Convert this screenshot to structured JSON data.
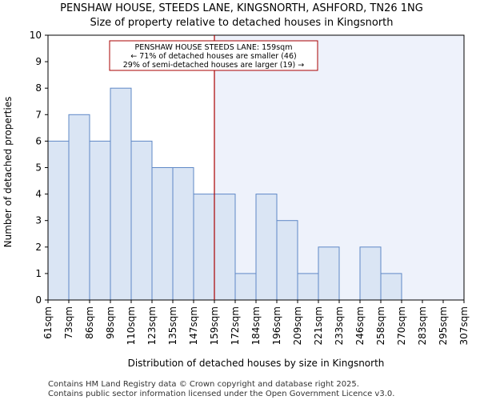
{
  "chart_data": {
    "type": "bar",
    "title": "PENSHAW HOUSE, STEEDS LANE, KINGSNORTH, ASHFORD, TN26 1NG",
    "subtitle": "Size of property relative to detached houses in Kingsnorth",
    "xlabel": "Distribution of detached houses by size in Kingsnorth",
    "ylabel": "Number of detached properties",
    "ylim": [
      0,
      10
    ],
    "yticks": [
      0,
      1,
      2,
      3,
      4,
      5,
      6,
      7,
      8,
      9,
      10
    ],
    "bin_edges": [
      "61sqm",
      "73sqm",
      "86sqm",
      "98sqm",
      "110sqm",
      "123sqm",
      "135sqm",
      "147sqm",
      "159sqm",
      "172sqm",
      "184sqm",
      "196sqm",
      "209sqm",
      "221sqm",
      "233sqm",
      "246sqm",
      "258sqm",
      "270sqm",
      "283sqm",
      "295sqm",
      "307sqm"
    ],
    "values": [
      6,
      7,
      6,
      8,
      6,
      5,
      5,
      4,
      4,
      1,
      4,
      3,
      1,
      2,
      0,
      2,
      1,
      0,
      0,
      0
    ],
    "marker": {
      "value_label": "159sqm",
      "bin_index": 8,
      "line_color": "#aa0000"
    },
    "annotation": {
      "line1": "PENSHAW HOUSE STEEDS LANE: 159sqm",
      "line2": "← 71% of detached houses are smaller (46)",
      "line3": "29% of semi-detached houses are larger (19) →"
    },
    "colors": {
      "bar_fill": "#dae5f4",
      "bar_stroke": "#5f88c6",
      "highlight_bg": "#eef2fb",
      "grid": "#d0d0d0"
    },
    "grid": false
  },
  "footer": {
    "line1": "Contains HM Land Registry data © Crown copyright and database right 2025.",
    "line2": "Contains public sector information licensed under the Open Government Licence v3.0."
  }
}
